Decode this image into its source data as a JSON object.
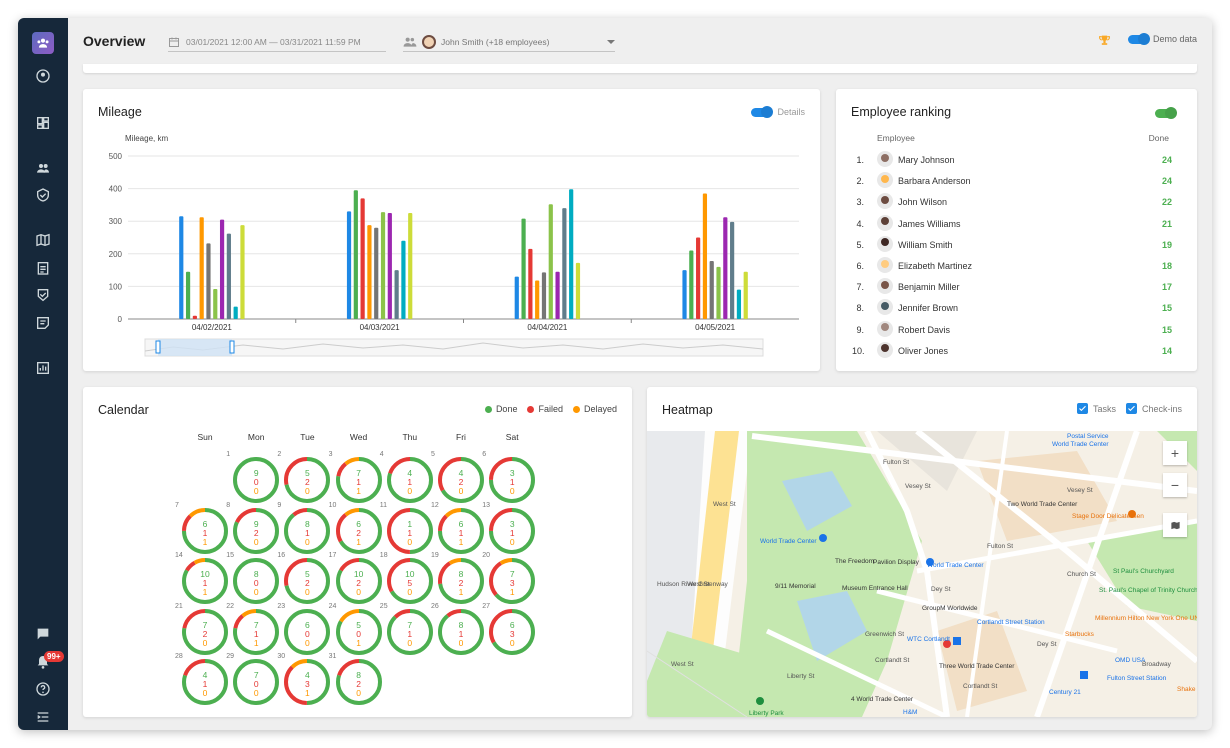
{
  "header": {
    "title": "Overview",
    "date_range": "03/01/2021 12:00 AM — 03/31/2021 11:59 PM",
    "employee_filter": "John Smith (+18 employees)",
    "demo_label": "Demo data"
  },
  "sidebar": {
    "badge": "99+"
  },
  "mileage": {
    "title": "Mileage",
    "details_label": "Details"
  },
  "chart_data": {
    "type": "bar",
    "title": "",
    "ylabel": "Mileage, km",
    "xlabel": "",
    "ylim": [
      0,
      500
    ],
    "yticks": [
      "0",
      "100",
      "200",
      "300",
      "400",
      "500"
    ],
    "categories": [
      "04/02/2021",
      "04/03/2021",
      "04/04/2021",
      "04/05/2021"
    ],
    "series_colors": [
      "#1e88e5",
      "#4caf50",
      "#e53935",
      "#ff9800",
      "#757575",
      "#8bc34a",
      "#9c27b0",
      "#607d8b",
      "#00acc1",
      "#cddc39",
      "#f4511e"
    ],
    "series": [
      {
        "values": [
          315,
          330,
          130,
          150
        ]
      },
      {
        "values": [
          145,
          395,
          308,
          210
        ]
      },
      {
        "values": [
          10,
          370,
          215,
          250
        ]
      },
      {
        "values": [
          312,
          288,
          118,
          385
        ]
      },
      {
        "values": [
          232,
          280,
          143,
          178
        ]
      },
      {
        "values": [
          92,
          328,
          352,
          160
        ]
      },
      {
        "values": [
          305,
          325,
          145,
          312
        ]
      },
      {
        "values": [
          262,
          150,
          340,
          298
        ]
      },
      {
        "values": [
          38,
          240,
          398,
          90
        ]
      },
      {
        "values": [
          288,
          325,
          172,
          145
        ]
      }
    ]
  },
  "ranking": {
    "title": "Employee ranking",
    "col_employee": "Employee",
    "col_done": "Done",
    "rows": [
      {
        "rank": "1.",
        "name": "Mary Johnson",
        "done": "24"
      },
      {
        "rank": "2.",
        "name": "Barbara Anderson",
        "done": "24"
      },
      {
        "rank": "3.",
        "name": "John Wilson",
        "done": "22"
      },
      {
        "rank": "4.",
        "name": "James Williams",
        "done": "21"
      },
      {
        "rank": "5.",
        "name": "William Smith",
        "done": "19"
      },
      {
        "rank": "6.",
        "name": "Elizabeth Martinez",
        "done": "18"
      },
      {
        "rank": "7.",
        "name": "Benjamin Miller",
        "done": "17"
      },
      {
        "rank": "8.",
        "name": "Jennifer Brown",
        "done": "15"
      },
      {
        "rank": "9.",
        "name": "Robert Davis",
        "done": "15"
      },
      {
        "rank": "10.",
        "name": "Oliver Jones",
        "done": "14"
      }
    ]
  },
  "calendar": {
    "title": "Calendar",
    "legend": [
      {
        "label": "Done",
        "color": "#4caf50"
      },
      {
        "label": "Failed",
        "color": "#e53935"
      },
      {
        "label": "Delayed",
        "color": "#ff9800"
      }
    ],
    "weekdays": [
      "Sun",
      "Mon",
      "Tue",
      "Wed",
      "Thu",
      "Fri",
      "Sat"
    ],
    "days": [
      {
        "d": "1",
        "col": 1,
        "row": 0,
        "done": 9,
        "failed": 0,
        "delayed": 0
      },
      {
        "d": "2",
        "col": 2,
        "row": 0,
        "done": 5,
        "failed": 2,
        "delayed": 0
      },
      {
        "d": "3",
        "col": 3,
        "row": 0,
        "done": 7,
        "failed": 1,
        "delayed": 1
      },
      {
        "d": "4",
        "col": 4,
        "row": 0,
        "done": 4,
        "failed": 1,
        "delayed": 0
      },
      {
        "d": "5",
        "col": 5,
        "row": 0,
        "done": 4,
        "failed": 2,
        "delayed": 0
      },
      {
        "d": "6",
        "col": 6,
        "row": 0,
        "done": 3,
        "failed": 1,
        "delayed": 0
      },
      {
        "d": "7",
        "col": 0,
        "row": 1,
        "done": 6,
        "failed": 1,
        "delayed": 1
      },
      {
        "d": "8",
        "col": 1,
        "row": 1,
        "done": 9,
        "failed": 2,
        "delayed": 0
      },
      {
        "d": "9",
        "col": 2,
        "row": 1,
        "done": 8,
        "failed": 1,
        "delayed": 0
      },
      {
        "d": "10",
        "col": 3,
        "row": 1,
        "done": 6,
        "failed": 2,
        "delayed": 1
      },
      {
        "d": "11",
        "col": 4,
        "row": 1,
        "done": 1,
        "failed": 1,
        "delayed": 0
      },
      {
        "d": "12",
        "col": 5,
        "row": 1,
        "done": 6,
        "failed": 1,
        "delayed": 1
      },
      {
        "d": "13",
        "col": 6,
        "row": 1,
        "done": 3,
        "failed": 1,
        "delayed": 0
      },
      {
        "d": "14",
        "col": 0,
        "row": 2,
        "done": 10,
        "failed": 1,
        "delayed": 1
      },
      {
        "d": "15",
        "col": 1,
        "row": 2,
        "done": 8,
        "failed": 0,
        "delayed": 0
      },
      {
        "d": "16",
        "col": 2,
        "row": 2,
        "done": 5,
        "failed": 2,
        "delayed": 0
      },
      {
        "d": "17",
        "col": 3,
        "row": 2,
        "done": 10,
        "failed": 2,
        "delayed": 0
      },
      {
        "d": "18",
        "col": 4,
        "row": 2,
        "done": 10,
        "failed": 5,
        "delayed": 0
      },
      {
        "d": "19",
        "col": 5,
        "row": 2,
        "done": 8,
        "failed": 2,
        "delayed": 1
      },
      {
        "d": "20",
        "col": 6,
        "row": 2,
        "done": 7,
        "failed": 3,
        "delayed": 1
      },
      {
        "d": "21",
        "col": 0,
        "row": 3,
        "done": 7,
        "failed": 2,
        "delayed": 0
      },
      {
        "d": "22",
        "col": 1,
        "row": 3,
        "done": 7,
        "failed": 1,
        "delayed": 1
      },
      {
        "d": "23",
        "col": 2,
        "row": 3,
        "done": 6,
        "failed": 0,
        "delayed": 0
      },
      {
        "d": "24",
        "col": 3,
        "row": 3,
        "done": 5,
        "failed": 0,
        "delayed": 1
      },
      {
        "d": "25",
        "col": 4,
        "row": 3,
        "done": 7,
        "failed": 1,
        "delayed": 0
      },
      {
        "d": "26",
        "col": 5,
        "row": 3,
        "done": 8,
        "failed": 1,
        "delayed": 0
      },
      {
        "d": "27",
        "col": 6,
        "row": 3,
        "done": 6,
        "failed": 3,
        "delayed": 0
      },
      {
        "d": "28",
        "col": 0,
        "row": 4,
        "done": 4,
        "failed": 1,
        "delayed": 0
      },
      {
        "d": "29",
        "col": 1,
        "row": 4,
        "done": 7,
        "failed": 0,
        "delayed": 0
      },
      {
        "d": "30",
        "col": 2,
        "row": 4,
        "done": 4,
        "failed": 3,
        "delayed": 1
      },
      {
        "d": "31",
        "col": 3,
        "row": 4,
        "done": 8,
        "failed": 2,
        "delayed": 0
      }
    ]
  },
  "heatmap": {
    "title": "Heatmap",
    "check_tasks": "Tasks",
    "check_checkins": "Check-ins",
    "map_labels": [
      {
        "t": "World Trade Center",
        "x": 405,
        "y": 10,
        "c": "#1a73e8"
      },
      {
        "t": "Postal Service",
        "x": 420,
        "y": 2,
        "c": "#1a73e8"
      },
      {
        "t": "World Trade Center",
        "x": 113,
        "y": 107,
        "c": "#1a73e8"
      },
      {
        "t": "Two World Trade Center",
        "x": 360,
        "y": 70,
        "c": "#333"
      },
      {
        "t": "Stage Door Delicatessen",
        "x": 425,
        "y": 82,
        "c": "#e8710a"
      },
      {
        "t": "World Trade Center",
        "x": 280,
        "y": 131,
        "c": "#1a73e8"
      },
      {
        "t": "The Freedom",
        "x": 188,
        "y": 127,
        "c": "#333"
      },
      {
        "t": "Pavilion Display",
        "x": 226,
        "y": 128,
        "c": "#333"
      },
      {
        "t": "9/11 Memorial",
        "x": 128,
        "y": 152,
        "c": "#333"
      },
      {
        "t": "Museum Entrance Hall",
        "x": 195,
        "y": 154,
        "c": "#333"
      },
      {
        "t": "GroupM Worldwide",
        "x": 275,
        "y": 174,
        "c": "#333"
      },
      {
        "t": "Cortlandt Street Station",
        "x": 330,
        "y": 188,
        "c": "#1a73e8"
      },
      {
        "t": "WTC Cortlandt",
        "x": 260,
        "y": 205,
        "c": "#1a73e8"
      },
      {
        "t": "Three World Trade Center",
        "x": 292,
        "y": 232,
        "c": "#333"
      },
      {
        "t": "Starbucks",
        "x": 418,
        "y": 200,
        "c": "#e8710a"
      },
      {
        "t": "Millennium Hilton New York One UN",
        "x": 448,
        "y": 184,
        "c": "#e8710a"
      },
      {
        "t": "OMD USA",
        "x": 468,
        "y": 226,
        "c": "#1a73e8"
      },
      {
        "t": "Fulton Street Station",
        "x": 460,
        "y": 244,
        "c": "#1a73e8"
      },
      {
        "t": "Century 21",
        "x": 402,
        "y": 258,
        "c": "#1a73e8"
      },
      {
        "t": "St Paul's Churchyard",
        "x": 466,
        "y": 137,
        "c": "#1e8e3e"
      },
      {
        "t": "St. Paul's Chapel of Trinity Church Wall...",
        "x": 452,
        "y": 156,
        "c": "#1e8e3e"
      },
      {
        "t": "4 World Trade Center",
        "x": 204,
        "y": 265,
        "c": "#333"
      },
      {
        "t": "Liberty Park",
        "x": 102,
        "y": 279,
        "c": "#1e8e3e"
      },
      {
        "t": "H&M",
        "x": 256,
        "y": 278,
        "c": "#1a73e8"
      },
      {
        "t": "Fulton St",
        "x": 236,
        "y": 28,
        "c": "#555"
      },
      {
        "t": "Vesey St",
        "x": 258,
        "y": 52,
        "c": "#555"
      },
      {
        "t": "Fulton St",
        "x": 340,
        "y": 112,
        "c": "#555"
      },
      {
        "t": "Dey St",
        "x": 284,
        "y": 155,
        "c": "#555"
      },
      {
        "t": "Cortlandt St",
        "x": 228,
        "y": 226,
        "c": "#555"
      },
      {
        "t": "Liberty St",
        "x": 140,
        "y": 242,
        "c": "#555"
      },
      {
        "t": "Greenwich St",
        "x": 218,
        "y": 200,
        "c": "#555"
      },
      {
        "t": "West St",
        "x": 66,
        "y": 70,
        "c": "#555"
      },
      {
        "t": "West St",
        "x": 40,
        "y": 150,
        "c": "#555"
      },
      {
        "t": "West St",
        "x": 24,
        "y": 230,
        "c": "#555"
      },
      {
        "t": "Hudson River Greenway",
        "x": 10,
        "y": 150,
        "c": "#555"
      },
      {
        "t": "Church St",
        "x": 420,
        "y": 140,
        "c": "#555"
      },
      {
        "t": "Broadway",
        "x": 495,
        "y": 230,
        "c": "#555"
      },
      {
        "t": "Dey St",
        "x": 390,
        "y": 210,
        "c": "#555"
      },
      {
        "t": "Cortlandt St",
        "x": 316,
        "y": 252,
        "c": "#555"
      },
      {
        "t": "Vesey St",
        "x": 420,
        "y": 56,
        "c": "#555"
      },
      {
        "t": "Shake",
        "x": 530,
        "y": 255,
        "c": "#e8710a"
      }
    ]
  }
}
